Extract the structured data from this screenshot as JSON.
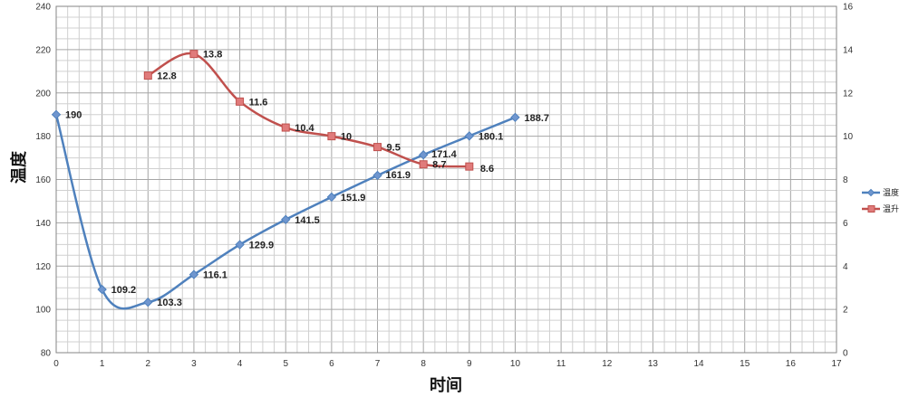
{
  "chart_data": {
    "type": "line",
    "title": "",
    "xlabel": "时间",
    "ylabel": "温度",
    "xlim": [
      0,
      17
    ],
    "ylim": [
      80,
      240
    ],
    "y2lim": [
      0,
      16
    ],
    "x_ticks": [
      0,
      1,
      2,
      3,
      4,
      5,
      6,
      7,
      8,
      9,
      10,
      11,
      12,
      13,
      14,
      15,
      16,
      17
    ],
    "y_ticks": [
      80,
      100,
      120,
      140,
      160,
      180,
      200,
      220,
      240
    ],
    "y2_ticks": [
      0,
      2,
      4,
      6,
      8,
      10,
      12,
      14,
      16
    ],
    "grid": true,
    "legend_position": "right",
    "series": [
      {
        "name": "温度",
        "axis": "left",
        "color": "#4f81bd",
        "marker": "diamond",
        "x": [
          0,
          1,
          2,
          3,
          4,
          5,
          6,
          7,
          8,
          9,
          10
        ],
        "values": [
          190,
          109.2,
          103.3,
          116.1,
          129.9,
          141.5,
          151.9,
          161.9,
          171.4,
          180.1,
          188.7
        ],
        "labels": [
          "190",
          "109.2",
          "103.3",
          "116.1",
          "129.9",
          "141.5",
          "151.9",
          "161.9",
          "171.4",
          "180.1",
          "188.7"
        ]
      },
      {
        "name": "温升",
        "axis": "right",
        "color": "#c0504d",
        "marker": "square",
        "x": [
          2,
          3,
          4,
          5,
          6,
          7,
          8,
          9
        ],
        "values": [
          12.8,
          13.8,
          11.6,
          10.4,
          10,
          9.5,
          8.7,
          8.6
        ],
        "labels": [
          "12.8",
          "13.8",
          "11.6",
          "10.4",
          "10",
          "9.5",
          "8.7",
          "8.6"
        ]
      }
    ]
  }
}
